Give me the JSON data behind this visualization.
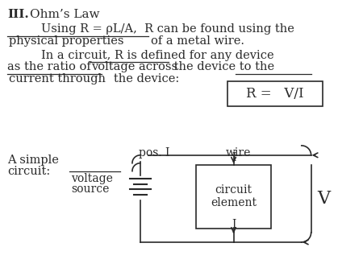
{
  "title_roman": "III.",
  "title_text": "Ohm’s Law",
  "line1": "Using R = ρL/A,  R can be found using the",
  "line2_underline": "physical properties",
  "line2_rest": "of a metal wire.",
  "line3": "In a circuit, R is defined for any device",
  "line4_pre": "as the ratio of ",
  "line4_underline": "voltage across",
  "line4_post": " the device to the",
  "line5_underline": "current through",
  "line5_post": "   the device:",
  "formula": "R =   V/I",
  "circuit_label_1": "A simple",
  "circuit_label_2": "circuit:",
  "voltage_label_1": "voltage",
  "voltage_label_2": "source",
  "pos_I_label": "pos. I",
  "wire_label": "wire",
  "circuit_element_label": "circuit\nelement",
  "V_label": "V",
  "bg_color": "#ffffff",
  "text_color": "#2a2a2a",
  "font_size_main": 10.5,
  "font_size_formula": 12,
  "font_size_title": 11
}
